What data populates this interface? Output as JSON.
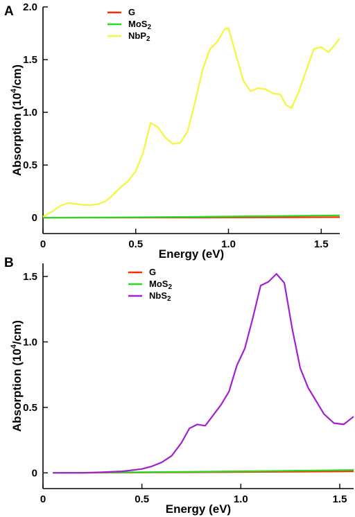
{
  "chart_data": [
    {
      "panel_label": "A",
      "type": "line",
      "xlabel": "Energy (eV)",
      "ylabel": {
        "main": "Absorption (10",
        "sup": "4",
        "tail": "/cm)"
      },
      "xlim": [
        0,
        1.6
      ],
      "ylim": [
        -0.15,
        2.0
      ],
      "xticks": [
        {
          "v": 0,
          "label": "0"
        },
        {
          "v": 0.5,
          "label": "0.5"
        },
        {
          "v": 1.0,
          "label": "1.0"
        },
        {
          "v": 1.5,
          "label": "1.5"
        }
      ],
      "yticks": [
        {
          "v": 0,
          "label": "0"
        },
        {
          "v": 0.5,
          "label": "0.5"
        },
        {
          "v": 1.0,
          "label": "1.0"
        },
        {
          "v": 1.5,
          "label": "1.5"
        },
        {
          "v": 2.0,
          "label": "2.0"
        }
      ],
      "series": [
        {
          "name": "G",
          "legend_main": "G",
          "legend_sub": "",
          "color": "#ff2a00",
          "x": [
            0,
            0.4,
            0.8,
            1.2,
            1.6
          ],
          "y": [
            0,
            0.001,
            0.002,
            0.003,
            0.005
          ]
        },
        {
          "name": "MoS2",
          "legend_main": "MoS",
          "legend_sub": "2",
          "color": "#22dd22",
          "x": [
            0,
            0.4,
            0.8,
            1.2,
            1.6
          ],
          "y": [
            0,
            0.003,
            0.008,
            0.015,
            0.022
          ]
        },
        {
          "name": "NbP2",
          "legend_main": "NbP",
          "legend_sub": "2",
          "color": "#f5f53a",
          "x": [
            0,
            0.05,
            0.1,
            0.14,
            0.18,
            0.22,
            0.26,
            0.3,
            0.34,
            0.38,
            0.42,
            0.46,
            0.5,
            0.54,
            0.58,
            0.62,
            0.66,
            0.7,
            0.74,
            0.78,
            0.82,
            0.86,
            0.9,
            0.94,
            0.98,
            1.0,
            1.04,
            1.08,
            1.12,
            1.16,
            1.2,
            1.24,
            1.28,
            1.31,
            1.34,
            1.38,
            1.42,
            1.46,
            1.5,
            1.54,
            1.6
          ],
          "y": [
            0.01,
            0.06,
            0.12,
            0.14,
            0.13,
            0.12,
            0.12,
            0.13,
            0.16,
            0.22,
            0.29,
            0.35,
            0.44,
            0.62,
            0.9,
            0.86,
            0.76,
            0.7,
            0.71,
            0.82,
            1.1,
            1.4,
            1.6,
            1.67,
            1.79,
            1.8,
            1.55,
            1.3,
            1.2,
            1.23,
            1.22,
            1.18,
            1.17,
            1.07,
            1.04,
            1.2,
            1.4,
            1.6,
            1.62,
            1.57,
            1.7
          ]
        }
      ]
    },
    {
      "panel_label": "B",
      "type": "line",
      "xlabel": "Energy (eV)",
      "ylabel": {
        "main": "Absorption (10",
        "sup": "4",
        "tail": "/cm)"
      },
      "xlim": [
        0,
        1.57
      ],
      "ylim": [
        -0.12,
        1.6
      ],
      "xticks": [
        {
          "v": 0,
          "label": "0"
        },
        {
          "v": 0.5,
          "label": "0.5"
        },
        {
          "v": 1.0,
          "label": "1.0"
        },
        {
          "v": 1.5,
          "label": "1.5"
        }
      ],
      "yticks": [
        {
          "v": 0,
          "label": "0"
        },
        {
          "v": 0.5,
          "label": "0.5"
        },
        {
          "v": 1.0,
          "label": "1.0"
        },
        {
          "v": 1.5,
          "label": "1.5"
        }
      ],
      "series": [
        {
          "name": "G",
          "legend_main": "G",
          "legend_sub": "",
          "color": "#ff2a00",
          "x": [
            0.05,
            0.4,
            0.8,
            1.2,
            1.57
          ],
          "y": [
            0,
            0.002,
            0.005,
            0.008,
            0.012
          ]
        },
        {
          "name": "MoS2",
          "legend_main": "MoS",
          "legend_sub": "2",
          "color": "#22dd22",
          "x": [
            0.05,
            0.4,
            0.8,
            1.2,
            1.57
          ],
          "y": [
            0,
            0.004,
            0.009,
            0.015,
            0.022
          ]
        },
        {
          "name": "NbS2",
          "legend_main": "NbS",
          "legend_sub": "2",
          "color": "#a020d0",
          "x": [
            0.05,
            0.2,
            0.3,
            0.4,
            0.45,
            0.5,
            0.55,
            0.6,
            0.65,
            0.7,
            0.74,
            0.78,
            0.82,
            0.86,
            0.9,
            0.94,
            0.98,
            1.02,
            1.06,
            1.1,
            1.14,
            1.18,
            1.22,
            1.26,
            1.3,
            1.34,
            1.38,
            1.42,
            1.47,
            1.52,
            1.57
          ],
          "y": [
            0,
            0,
            0.005,
            0.012,
            0.02,
            0.03,
            0.05,
            0.08,
            0.13,
            0.23,
            0.34,
            0.37,
            0.36,
            0.44,
            0.52,
            0.62,
            0.82,
            0.95,
            1.18,
            1.43,
            1.46,
            1.52,
            1.45,
            1.1,
            0.8,
            0.65,
            0.55,
            0.45,
            0.38,
            0.37,
            0.43
          ]
        }
      ]
    }
  ]
}
